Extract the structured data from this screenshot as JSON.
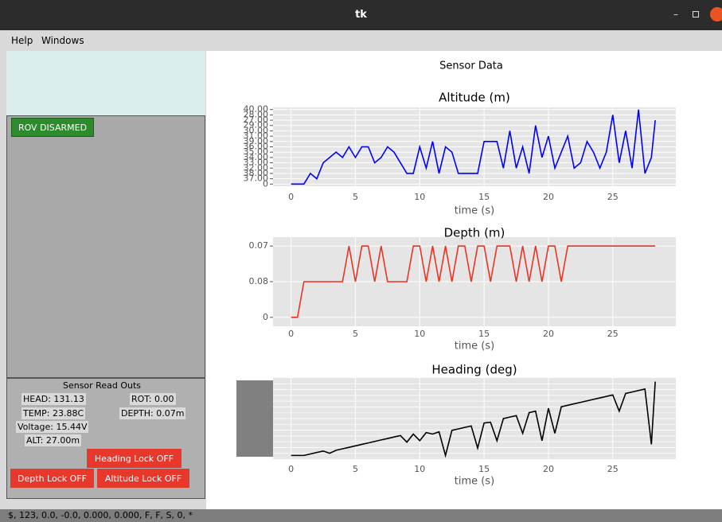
{
  "window_title": "tk",
  "menu": [
    "Help",
    "Windows"
  ],
  "status_button": "ROV DISARMED",
  "readouts": {
    "title": "Sensor Read Outs",
    "items": [
      "HEAD: 131.13",
      "ROT: 0.00",
      "TEMP: 23.88C",
      "DEPTH: 0.07m",
      "Voltage: 15.44V",
      "ALT: 27.00m"
    ]
  },
  "buttons": [
    "Heading Lock OFF",
    "Depth Lock OFF",
    "Altitude Lock OFF"
  ],
  "status_bar": "$, 123, 0.0, -0.0, 0.000, 0.000, F, F, S, 0, *",
  "figure_title": "Sensor Data",
  "chart_data": [
    {
      "type": "line",
      "title": "Altitude (m)",
      "x_label": "time (s)",
      "color": "#0000ff",
      "x": [
        0,
        0.5,
        1,
        1.5,
        2,
        2.5,
        3,
        3.5,
        4,
        4.5,
        5,
        5.5,
        6,
        6.5,
        7,
        7.5,
        8,
        8.5,
        9,
        9.5,
        10,
        10.5,
        11,
        11.5,
        12,
        12.5,
        13,
        13.5,
        14,
        14.5,
        15,
        15.5,
        16,
        16.5,
        17,
        17.5,
        18,
        18.5,
        19,
        19.5,
        20,
        20.5,
        21,
        21.5,
        22,
        22.5,
        23,
        23.5,
        24,
        24.5,
        25,
        25.5,
        26,
        26.5,
        27,
        27.5,
        28,
        28.3
      ],
      "values": [
        0,
        0,
        0,
        2,
        1,
        4,
        5,
        6,
        5,
        7,
        5,
        7,
        7,
        4,
        5,
        7,
        6,
        4,
        2,
        2,
        7,
        3,
        8,
        2,
        7,
        6,
        2,
        2,
        2,
        2,
        8,
        8,
        8,
        3,
        10,
        3,
        7,
        2,
        11,
        5,
        9,
        3,
        6,
        9,
        3,
        4,
        8,
        6,
        3,
        6,
        13,
        4,
        10,
        3,
        14,
        2,
        5,
        12
      ],
      "xlim": [
        -1.4,
        29.9
      ],
      "xticks": [
        0,
        5,
        10,
        15,
        20,
        25
      ],
      "ylim": [
        -0.4,
        14.4
      ],
      "yticks": [
        {
          "value": 0,
          "label": "0"
        },
        {
          "value": 1,
          "label": "37.00"
        },
        {
          "value": 2,
          "label": "38.00"
        },
        {
          "value": 3,
          "label": "32.00"
        },
        {
          "value": 4,
          "label": "33.00"
        },
        {
          "value": 5,
          "label": "34.00"
        },
        {
          "value": 6,
          "label": "35.00"
        },
        {
          "value": 7,
          "label": "36.00"
        },
        {
          "value": 8,
          "label": "39.00"
        },
        {
          "value": 9,
          "label": "31.00"
        },
        {
          "value": 10,
          "label": "30.00"
        },
        {
          "value": 11,
          "label": "29.00"
        },
        {
          "value": 12,
          "label": "27.00"
        },
        {
          "value": 13,
          "label": "28.00"
        },
        {
          "value": 14,
          "label": "40.00"
        }
      ],
      "grid": true
    },
    {
      "type": "line",
      "title": "Depth (m)",
      "x_label": "time (s)",
      "color": "#ee3322",
      "x": [
        0,
        0.5,
        1,
        1.5,
        2,
        2.5,
        3,
        3.5,
        4,
        4.5,
        5,
        5.5,
        6,
        6.5,
        7,
        7.5,
        8,
        8.5,
        9,
        9.5,
        10,
        10.5,
        11,
        11.5,
        12,
        12.5,
        13,
        13.5,
        14,
        14.5,
        15,
        15.5,
        16,
        16.5,
        17,
        17.5,
        18,
        18.5,
        19,
        19.5,
        20,
        20.5,
        21,
        21.5,
        22,
        22.5,
        23,
        23.5,
        24,
        24.5,
        25,
        25.5,
        26,
        26.5,
        27,
        27.5,
        28,
        28.3
      ],
      "values": [
        0,
        0,
        1,
        1,
        1,
        1,
        1,
        1,
        1,
        2,
        1,
        2,
        2,
        1,
        2,
        1,
        1,
        1,
        1,
        2,
        2,
        1,
        2,
        1,
        2,
        1,
        2,
        2,
        1,
        2,
        2,
        1,
        2,
        2,
        2,
        1,
        2,
        1,
        2,
        1,
        2,
        2,
        1,
        2,
        2,
        2,
        2,
        2,
        2,
        2,
        2,
        2,
        2,
        2,
        2,
        2,
        2,
        2
      ],
      "xlim": [
        -1.4,
        29.9
      ],
      "xticks": [
        0,
        5,
        10,
        15,
        20,
        25
      ],
      "ylim": [
        -0.25,
        2.25
      ],
      "yticks": [
        {
          "value": 0,
          "label": "0"
        },
        {
          "value": 1,
          "label": "0.08"
        },
        {
          "value": 2,
          "label": "0.07"
        }
      ],
      "grid": true
    },
    {
      "type": "line",
      "title": "Heading (deg)",
      "x_label": "time (s)",
      "color": "#000000",
      "x": [
        0,
        0.5,
        1,
        1.5,
        2,
        2.5,
        3,
        3.5,
        4,
        4.5,
        5,
        5.5,
        6,
        6.5,
        7,
        7.5,
        8,
        8.5,
        9,
        9.5,
        10,
        10.5,
        11,
        11.5,
        12,
        12.5,
        13,
        13.5,
        14,
        14.5,
        15,
        15.5,
        16,
        16.5,
        17,
        17.5,
        18,
        18.5,
        19,
        19.5,
        20,
        20.5,
        21,
        21.5,
        22,
        22.5,
        23,
        23.5,
        24,
        24.5,
        25,
        25.5,
        26,
        26.5,
        27,
        27.5,
        28,
        28.3
      ],
      "values": [
        0,
        0,
        0,
        2,
        4,
        6,
        3,
        7,
        9,
        11,
        13,
        15,
        17,
        19,
        21,
        23,
        25,
        27,
        18,
        29,
        20,
        31,
        29,
        32,
        0,
        34,
        36,
        38,
        40,
        10,
        44,
        45,
        20,
        50,
        52,
        54,
        30,
        58,
        60,
        20,
        64,
        30,
        66,
        68,
        70,
        72,
        74,
        76,
        78,
        80,
        82,
        60,
        84,
        86,
        88,
        90,
        15,
        100
      ],
      "xlim": [
        -1.4,
        29.9
      ],
      "xticks": [
        0,
        5,
        10,
        15,
        20,
        25
      ],
      "ylim": [
        -5,
        105
      ],
      "grid": true
    }
  ]
}
